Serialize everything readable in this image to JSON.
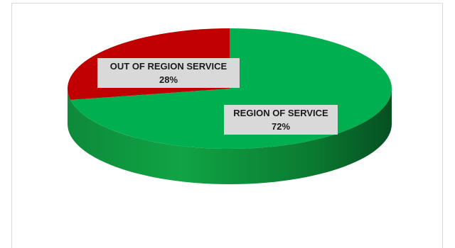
{
  "chart_data": {
    "type": "pie",
    "title": "",
    "style": "3d",
    "slices": [
      {
        "label": "REGION OF SERVICE",
        "value": 72,
        "value_label": "72%",
        "color": "#00b050"
      },
      {
        "label": "OUT OF REGION SERVICE",
        "value": 28,
        "value_label": "28%",
        "color": "#c00000"
      }
    ]
  }
}
